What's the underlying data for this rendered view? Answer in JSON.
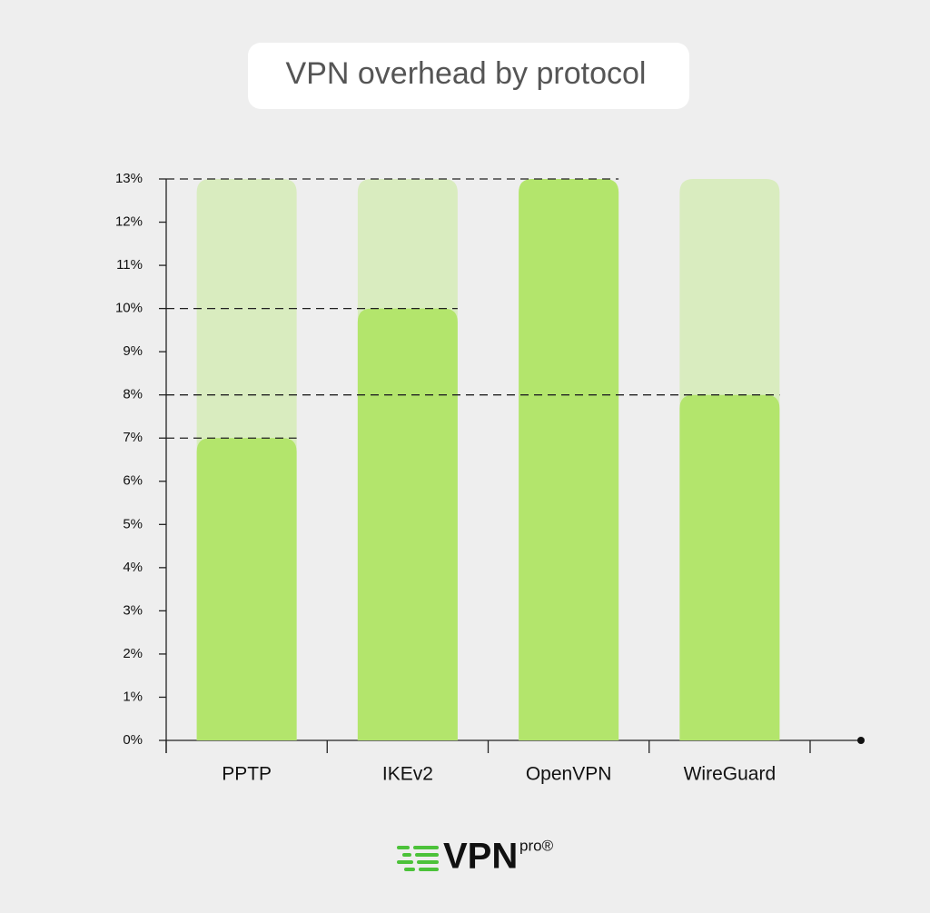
{
  "chart_data": {
    "type": "bar",
    "title": "VPN overhead by protocol",
    "categories": [
      "PPTP",
      "IKEv2",
      "OpenVPN",
      "WireGuard"
    ],
    "values": [
      7,
      10,
      13,
      8
    ],
    "color": "#b3e56c",
    "track_color": "#d9ecbf",
    "ylim": [
      0,
      13
    ],
    "yticks": [
      {
        "value": 0,
        "label": "0%"
      },
      {
        "value": 1,
        "label": "1%"
      },
      {
        "value": 2,
        "label": "2%"
      },
      {
        "value": 3,
        "label": "3%"
      },
      {
        "value": 4,
        "label": "4%"
      },
      {
        "value": 5,
        "label": "5%"
      },
      {
        "value": 6,
        "label": "6%"
      },
      {
        "value": 7,
        "label": "7%"
      },
      {
        "value": 8,
        "label": "8%"
      },
      {
        "value": 9,
        "label": "9%"
      },
      {
        "value": 10,
        "label": "10%"
      },
      {
        "value": 11,
        "label": "11%"
      },
      {
        "value": 12,
        "label": "12%"
      },
      {
        "value": 13,
        "label": "13%"
      }
    ]
  },
  "logo": {
    "main": "VPN",
    "sup": "pro®"
  }
}
